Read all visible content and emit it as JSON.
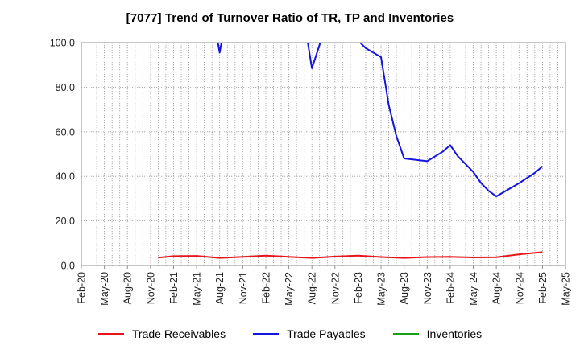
{
  "chart_data": {
    "type": "line",
    "title": "[7077]  Trend of Turnover Ratio of TR, TP and Inventories",
    "xlabel": "",
    "ylabel": "",
    "ylim": [
      0,
      100
    ],
    "yticks": [
      "0.0",
      "20.0",
      "40.0",
      "60.0",
      "80.0",
      "100.0"
    ],
    "xtick_labels": [
      "Feb-20",
      "May-20",
      "Aug-20",
      "Nov-20",
      "Feb-21",
      "May-21",
      "Aug-21",
      "Nov-21",
      "Feb-22",
      "May-22",
      "Aug-22",
      "Nov-22",
      "Feb-23",
      "May-23",
      "Aug-23",
      "Nov-23",
      "Feb-24",
      "May-24",
      "Aug-24",
      "Nov-24",
      "Feb-25",
      "May-25"
    ],
    "x_months": [
      "2020-02",
      "2020-03",
      "2020-04",
      "2020-05",
      "2020-06",
      "2020-07",
      "2020-08",
      "2020-09",
      "2020-10",
      "2020-11",
      "2020-12",
      "2021-01",
      "2021-02",
      "2021-03",
      "2021-04",
      "2021-05",
      "2021-06",
      "2021-07",
      "2021-08",
      "2021-09",
      "2021-10",
      "2021-11",
      "2021-12",
      "2022-01",
      "2022-02",
      "2022-03",
      "2022-04",
      "2022-05",
      "2022-06",
      "2022-07",
      "2022-08",
      "2022-09",
      "2022-10",
      "2022-11",
      "2022-12",
      "2023-01",
      "2023-02",
      "2023-03",
      "2023-04",
      "2023-05",
      "2023-06",
      "2023-07",
      "2023-08",
      "2023-09",
      "2023-10",
      "2023-11",
      "2023-12",
      "2024-01",
      "2024-02",
      "2024-03",
      "2024-04",
      "2024-05",
      "2024-06",
      "2024-07",
      "2024-08",
      "2024-09",
      "2024-10",
      "2024-11",
      "2024-12",
      "2025-01",
      "2025-02",
      "2025-03",
      "2025-04",
      "2025-05"
    ],
    "grid": true,
    "legend_position": "bottom",
    "series": [
      {
        "name": "Trade Receivables",
        "color": "#e8141b",
        "points": [
          {
            "x": "2020-12",
            "y": 3.5
          },
          {
            "x": "2021-02",
            "y": 4.2
          },
          {
            "x": "2021-05",
            "y": 4.3
          },
          {
            "x": "2021-08",
            "y": 3.4
          },
          {
            "x": "2021-11",
            "y": 3.9
          },
          {
            "x": "2022-02",
            "y": 4.4
          },
          {
            "x": "2022-05",
            "y": 3.9
          },
          {
            "x": "2022-08",
            "y": 3.4
          },
          {
            "x": "2022-11",
            "y": 4.0
          },
          {
            "x": "2023-02",
            "y": 4.4
          },
          {
            "x": "2023-05",
            "y": 3.8
          },
          {
            "x": "2023-08",
            "y": 3.4
          },
          {
            "x": "2023-11",
            "y": 3.8
          },
          {
            "x": "2024-02",
            "y": 3.9
          },
          {
            "x": "2024-05",
            "y": 3.6
          },
          {
            "x": "2024-08",
            "y": 3.7
          },
          {
            "x": "2024-11",
            "y": 5.0
          },
          {
            "x": "2025-02",
            "y": 6.0
          }
        ]
      },
      {
        "name": "Trade Payables",
        "color": "#1414e0",
        "segments": [
          [
            {
              "x": "2021-07",
              "y": 115
            },
            {
              "x": "2021-08",
              "y": 95.5
            },
            {
              "x": "2021-09",
              "y": 115
            }
          ],
          [
            {
              "x": "2022-07",
              "y": 110
            },
            {
              "x": "2022-08",
              "y": 88.5
            },
            {
              "x": "2022-09",
              "y": 99
            },
            {
              "x": "2022-10",
              "y": 112
            }
          ],
          [
            {
              "x": "2023-02",
              "y": 101
            },
            {
              "x": "2023-03",
              "y": 97.5
            },
            {
              "x": "2023-05",
              "y": 93.5
            },
            {
              "x": "2023-06",
              "y": 72
            },
            {
              "x": "2023-07",
              "y": 58
            },
            {
              "x": "2023-08",
              "y": 48
            },
            {
              "x": "2023-11",
              "y": 46.8
            },
            {
              "x": "2024-01",
              "y": 51
            },
            {
              "x": "2024-02",
              "y": 54
            },
            {
              "x": "2024-03",
              "y": 49
            },
            {
              "x": "2024-05",
              "y": 42
            },
            {
              "x": "2024-06",
              "y": 37
            },
            {
              "x": "2024-07",
              "y": 33.5
            },
            {
              "x": "2024-08",
              "y": 31
            },
            {
              "x": "2024-11",
              "y": 37
            },
            {
              "x": "2025-01",
              "y": 41.5
            },
            {
              "x": "2025-02",
              "y": 44.5
            }
          ]
        ]
      },
      {
        "name": "Inventories",
        "color": "#15a015",
        "points": []
      }
    ]
  }
}
